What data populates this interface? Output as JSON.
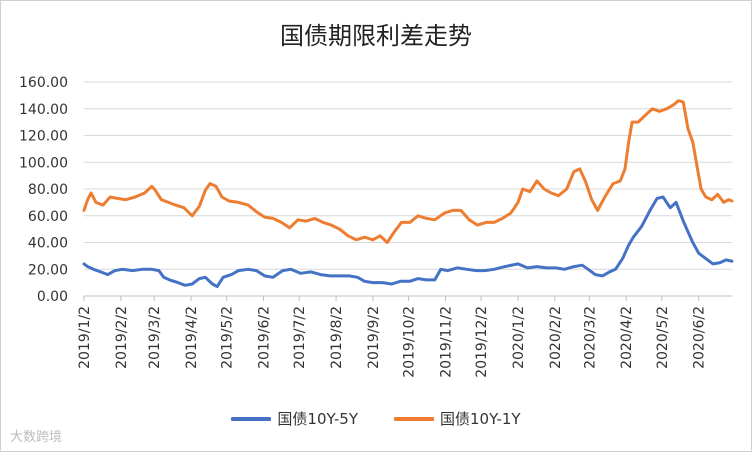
{
  "chart_data": {
    "type": "line",
    "title": "国债期限利差走势",
    "xlabel": "",
    "ylabel": "",
    "ylim": [
      0,
      160
    ],
    "yticks": [
      "0.00",
      "20.00",
      "40.00",
      "60.00",
      "80.00",
      "100.00",
      "120.00",
      "140.00",
      "160.00"
    ],
    "xticks": [
      "2019/1/2",
      "2019/2/2",
      "2019/3/2",
      "2019/4/2",
      "2019/5/2",
      "2019/6/2",
      "2019/7/2",
      "2019/8/2",
      "2019/9/2",
      "2019/10/2",
      "2019/11/2",
      "2019/12/2",
      "2020/1/2",
      "2020/2/2",
      "2020/3/2",
      "2020/4/2",
      "2020/5/2",
      "2020/6/2"
    ],
    "grid": "horizontal",
    "legend_position": "bottom",
    "series": [
      {
        "name": "国债10Y-5Y",
        "color": "#4472C4",
        "points": [
          [
            "2019/1/2",
            24
          ],
          [
            "2019/1/5",
            22
          ],
          [
            "2019/1/10",
            20
          ],
          [
            "2019/1/16",
            18
          ],
          [
            "2019/1/22",
            16
          ],
          [
            "2019/1/28",
            19
          ],
          [
            "2019/2/3",
            20
          ],
          [
            "2019/2/12",
            19
          ],
          [
            "2019/2/20",
            20
          ],
          [
            "2019/2/28",
            20
          ],
          [
            "2019/3/6",
            19
          ],
          [
            "2019/3/10",
            14
          ],
          [
            "2019/3/15",
            12
          ],
          [
            "2019/3/22",
            10
          ],
          [
            "2019/3/28",
            8
          ],
          [
            "2019/4/3",
            9
          ],
          [
            "2019/4/9",
            13
          ],
          [
            "2019/4/14",
            14
          ],
          [
            "2019/4/20",
            9
          ],
          [
            "2019/4/24",
            7
          ],
          [
            "2019/4/29",
            14
          ],
          [
            "2019/5/6",
            16
          ],
          [
            "2019/5/12",
            19
          ],
          [
            "2019/5/20",
            20
          ],
          [
            "2019/5/27",
            19
          ],
          [
            "2019/6/3",
            15
          ],
          [
            "2019/6/10",
            14
          ],
          [
            "2019/6/18",
            19
          ],
          [
            "2019/6/25",
            20
          ],
          [
            "2019/7/3",
            17
          ],
          [
            "2019/7/12",
            18
          ],
          [
            "2019/7/20",
            16
          ],
          [
            "2019/7/28",
            15
          ],
          [
            "2019/8/5",
            15
          ],
          [
            "2019/8/13",
            15
          ],
          [
            "2019/8/20",
            14
          ],
          [
            "2019/8/26",
            11
          ],
          [
            "2019/9/2",
            10
          ],
          [
            "2019/9/10",
            10
          ],
          [
            "2019/9/18",
            9
          ],
          [
            "2019/9/25",
            11
          ],
          [
            "2019/10/3",
            11
          ],
          [
            "2019/10/10",
            13
          ],
          [
            "2019/10/17",
            12
          ],
          [
            "2019/10/24",
            12
          ],
          [
            "2019/10/29",
            20
          ],
          [
            "2019/11/4",
            19
          ],
          [
            "2019/11/12",
            21
          ],
          [
            "2019/11/20",
            20
          ],
          [
            "2019/11/28",
            19
          ],
          [
            "2019/12/5",
            19
          ],
          [
            "2019/12/13",
            20
          ],
          [
            "2019/12/22",
            22
          ],
          [
            "2020/1/2",
            24
          ],
          [
            "2020/1/10",
            21
          ],
          [
            "2020/1/18",
            22
          ],
          [
            "2020/1/26",
            21
          ],
          [
            "2020/2/3",
            21
          ],
          [
            "2020/2/10",
            20
          ],
          [
            "2020/2/18",
            22
          ],
          [
            "2020/2/25",
            23
          ],
          [
            "2020/3/1",
            20
          ],
          [
            "2020/3/7",
            16
          ],
          [
            "2020/3/13",
            15
          ],
          [
            "2020/3/19",
            18
          ],
          [
            "2020/3/24",
            20
          ],
          [
            "2020/3/30",
            28
          ],
          [
            "2020/4/4",
            38
          ],
          [
            "2020/4/8",
            44
          ],
          [
            "2020/4/15",
            52
          ],
          [
            "2020/4/22",
            64
          ],
          [
            "2020/4/28",
            73
          ],
          [
            "2020/5/3",
            74
          ],
          [
            "2020/5/9",
            66
          ],
          [
            "2020/5/14",
            70
          ],
          [
            "2020/5/20",
            56
          ],
          [
            "2020/5/24",
            48
          ],
          [
            "2020/5/28",
            40
          ],
          [
            "2020/6/2",
            32
          ],
          [
            "2020/6/8",
            28
          ],
          [
            "2020/6/14",
            24
          ],
          [
            "2020/6/20",
            25
          ],
          [
            "2020/6/25",
            27
          ],
          [
            "2020/6/30",
            26
          ]
        ]
      },
      {
        "name": "国债10Y-1Y",
        "color": "#ED7D31",
        "points": [
          [
            "2019/1/2",
            64
          ],
          [
            "2019/1/5",
            72
          ],
          [
            "2019/1/8",
            77
          ],
          [
            "2019/1/12",
            70
          ],
          [
            "2019/1/18",
            68
          ],
          [
            "2019/1/24",
            74
          ],
          [
            "2019/1/30",
            73
          ],
          [
            "2019/2/6",
            72
          ],
          [
            "2019/2/14",
            74
          ],
          [
            "2019/2/22",
            77
          ],
          [
            "2019/2/28",
            82
          ],
          [
            "2019/3/3",
            79
          ],
          [
            "2019/3/8",
            72
          ],
          [
            "2019/3/14",
            70
          ],
          [
            "2019/3/20",
            68
          ],
          [
            "2019/3/27",
            66
          ],
          [
            "2019/4/3",
            60
          ],
          [
            "2019/4/9",
            67
          ],
          [
            "2019/4/14",
            79
          ],
          [
            "2019/4/18",
            84
          ],
          [
            "2019/4/23",
            82
          ],
          [
            "2019/4/28",
            74
          ],
          [
            "2019/5/4",
            71
          ],
          [
            "2019/5/12",
            70
          ],
          [
            "2019/5/20",
            68
          ],
          [
            "2019/5/27",
            63
          ],
          [
            "2019/6/3",
            59
          ],
          [
            "2019/6/10",
            58
          ],
          [
            "2019/6/17",
            55
          ],
          [
            "2019/6/24",
            51
          ],
          [
            "2019/7/1",
            57
          ],
          [
            "2019/7/8",
            56
          ],
          [
            "2019/7/15",
            58
          ],
          [
            "2019/7/22",
            55
          ],
          [
            "2019/7/29",
            53
          ],
          [
            "2019/8/5",
            50
          ],
          [
            "2019/8/12",
            45
          ],
          [
            "2019/8/19",
            42
          ],
          [
            "2019/8/26",
            44
          ],
          [
            "2019/9/2",
            42
          ],
          [
            "2019/9/8",
            45
          ],
          [
            "2019/9/14",
            40
          ],
          [
            "2019/9/20",
            48
          ],
          [
            "2019/9/26",
            55
          ],
          [
            "2019/10/3",
            55
          ],
          [
            "2019/10/10",
            60
          ],
          [
            "2019/10/17",
            58
          ],
          [
            "2019/10/24",
            57
          ],
          [
            "2019/11/1",
            62
          ],
          [
            "2019/11/8",
            64
          ],
          [
            "2019/11/15",
            64
          ],
          [
            "2019/11/22",
            57
          ],
          [
            "2019/11/29",
            53
          ],
          [
            "2019/12/6",
            55
          ],
          [
            "2019/12/13",
            55
          ],
          [
            "2019/12/20",
            58
          ],
          [
            "2019/12/27",
            62
          ],
          [
            "2020/1/2",
            70
          ],
          [
            "2020/1/6",
            80
          ],
          [
            "2020/1/12",
            78
          ],
          [
            "2020/1/18",
            86
          ],
          [
            "2020/1/24",
            80
          ],
          [
            "2020/1/30",
            77
          ],
          [
            "2020/2/5",
            75
          ],
          [
            "2020/2/12",
            80
          ],
          [
            "2020/2/18",
            93
          ],
          [
            "2020/2/23",
            95
          ],
          [
            "2020/2/28",
            85
          ],
          [
            "2020/3/4",
            72
          ],
          [
            "2020/3/9",
            64
          ],
          [
            "2020/3/15",
            74
          ],
          [
            "2020/3/22",
            84
          ],
          [
            "2020/3/28",
            86
          ],
          [
            "2020/4/1",
            95
          ],
          [
            "2020/4/4",
            115
          ],
          [
            "2020/4/7",
            130
          ],
          [
            "2020/4/12",
            130
          ],
          [
            "2020/4/18",
            135
          ],
          [
            "2020/4/24",
            140
          ],
          [
            "2020/4/30",
            138
          ],
          [
            "2020/5/6",
            140
          ],
          [
            "2020/5/12",
            143
          ],
          [
            "2020/5/16",
            146
          ],
          [
            "2020/5/20",
            145
          ],
          [
            "2020/5/24",
            125
          ],
          [
            "2020/5/28",
            115
          ],
          [
            "2020/6/1",
            95
          ],
          [
            "2020/6/4",
            80
          ],
          [
            "2020/6/8",
            74
          ],
          [
            "2020/6/13",
            72
          ],
          [
            "2020/6/18",
            76
          ],
          [
            "2020/6/23",
            70
          ],
          [
            "2020/6/27",
            72
          ],
          [
            "2020/6/30",
            71
          ]
        ]
      }
    ]
  },
  "watermark": "大数跨境"
}
